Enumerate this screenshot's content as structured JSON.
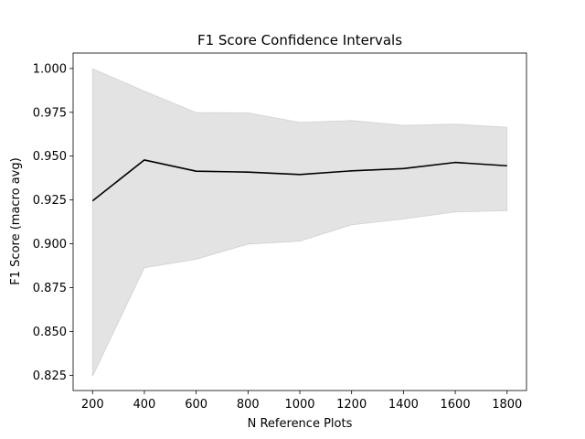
{
  "chart_data": {
    "type": "line",
    "title": "F1 Score Confidence Intervals",
    "xlabel": "N Reference Plots",
    "ylabel": "F1 Score (macro avg)",
    "x": [
      200,
      400,
      600,
      800,
      1000,
      1200,
      1400,
      1600,
      1800
    ],
    "xticks": [
      200,
      400,
      600,
      800,
      1000,
      1200,
      1400,
      1600,
      1800
    ],
    "yticks": [
      0.825,
      0.85,
      0.875,
      0.9,
      0.925,
      0.95,
      0.975,
      1.0
    ],
    "ytick_labels": [
      "0.825",
      "0.850",
      "0.875",
      "0.900",
      "0.925",
      "0.950",
      "0.975",
      "1.000"
    ],
    "xlim": [
      125,
      1875
    ],
    "ylim": [
      0.8163,
      1.0088
    ],
    "grid": false,
    "series": [
      {
        "values": [
          0.9245,
          0.9478,
          0.9414,
          0.9409,
          0.9395,
          0.9416,
          0.9429,
          0.9464,
          0.9445
        ],
        "lower": [
          0.8244,
          0.8863,
          0.8912,
          0.8998,
          0.9015,
          0.9108,
          0.9141,
          0.9182,
          0.9188
        ],
        "upper": [
          0.9999,
          0.9871,
          0.9749,
          0.9747,
          0.9693,
          0.9703,
          0.9676,
          0.9683,
          0.9665
        ],
        "color": "#000000",
        "band_color": "#a8a8a8"
      }
    ]
  }
}
